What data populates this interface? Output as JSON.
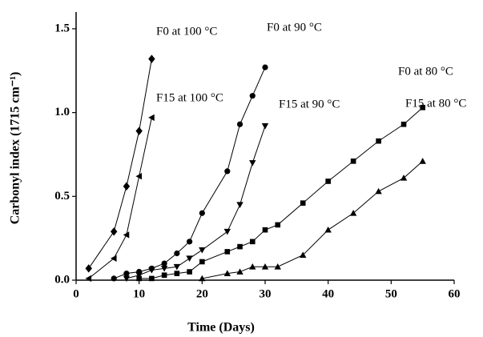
{
  "chart_data": {
    "type": "line",
    "x_label": "Time (Days)",
    "y_label": "Carbonyl index (1715 cm⁻¹)",
    "xlim": [
      0,
      60
    ],
    "xticks": [
      0,
      10,
      20,
      30,
      40,
      50,
      60
    ],
    "ylim": [
      0,
      1.6
    ],
    "yticks": [
      {
        "value": 0,
        "label": "0.0"
      },
      0.5,
      {
        "value": 1,
        "label": "1.0"
      },
      1.5
    ],
    "series": [
      {
        "name": "F0 at 100 °C",
        "color": "#000000",
        "marker": "diamond",
        "x": [
          2,
          6,
          8,
          10,
          12
        ],
        "values": [
          0.07,
          0.29,
          0.56,
          0.89,
          1.32
        ]
      },
      {
        "name": "F15 at 100 °C",
        "color": "#000000",
        "marker": "triangle-left",
        "x": [
          2,
          6,
          8,
          10,
          12
        ],
        "values": [
          0.01,
          0.13,
          0.27,
          0.62,
          0.97
        ]
      },
      {
        "name": "F0 at 90 °C",
        "color": "#000000",
        "marker": "circle",
        "x": [
          6,
          8,
          10,
          12,
          14,
          16,
          18,
          20,
          24,
          26,
          28,
          30
        ],
        "values": [
          0.01,
          0.04,
          0.05,
          0.07,
          0.1,
          0.16,
          0.23,
          0.4,
          0.65,
          0.93,
          1.1,
          1.27
        ]
      },
      {
        "name": "F15 at 90 °C",
        "color": "#000000",
        "marker": "triangle-down",
        "x": [
          8,
          10,
          12,
          14,
          16,
          18,
          20,
          24,
          26,
          28,
          30
        ],
        "values": [
          0.01,
          0.03,
          0.06,
          0.07,
          0.08,
          0.13,
          0.18,
          0.29,
          0.45,
          0.7,
          0.92
        ]
      },
      {
        "name": "F0 at 80 °C",
        "color": "#000000",
        "marker": "square",
        "x": [
          10,
          12,
          14,
          16,
          18,
          20,
          24,
          26,
          28,
          30,
          32,
          36,
          40,
          44,
          48,
          52,
          55
        ],
        "values": [
          0.01,
          0.01,
          0.03,
          0.04,
          0.05,
          0.11,
          0.17,
          0.2,
          0.23,
          0.3,
          0.33,
          0.46,
          0.59,
          0.71,
          0.83,
          0.93,
          1.03
        ]
      },
      {
        "name": "F15 at 80 °C",
        "color": "#000000",
        "marker": "triangle-up",
        "x": [
          20,
          24,
          26,
          28,
          30,
          32,
          36,
          40,
          44,
          48,
          52,
          55
        ],
        "values": [
          0.01,
          0.04,
          0.05,
          0.08,
          0.08,
          0.08,
          0.15,
          0.3,
          0.4,
          0.53,
          0.61,
          0.71
        ]
      }
    ]
  }
}
